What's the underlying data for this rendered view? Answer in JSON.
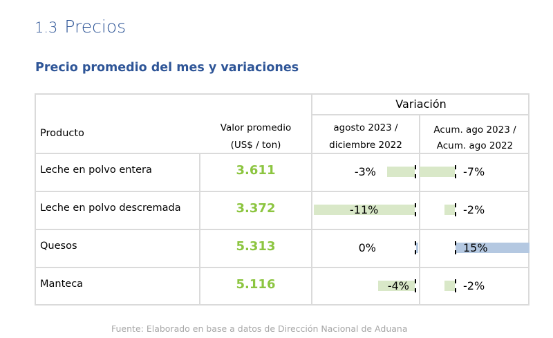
{
  "section": {
    "number": "1.3",
    "title": "Precios"
  },
  "subtitle": "Precio promedio del mes y variaciones",
  "table": {
    "header": {
      "variacion": "Variación",
      "producto": "Producto",
      "valor_line1": "Valor promedio",
      "valor_line2": "(US$ / ton)",
      "mensual_line1": "agosto 2023 /",
      "mensual_line2": "diciembre 2022",
      "acum_line1": "Acum. ago 2023 /",
      "acum_line2": "Acum. ago 2022"
    },
    "rows": [
      {
        "producto": "Leche en polvo entera",
        "valor": "3.611",
        "var_mensual": -3,
        "var_mensual_label": "-3%",
        "var_acum": -7,
        "var_acum_label": "-7%"
      },
      {
        "producto": "Leche en polvo descremada",
        "valor": "3.372",
        "var_mensual": -11,
        "var_mensual_label": "-11%",
        "var_acum": -2,
        "var_acum_label": "-2%"
      },
      {
        "producto": "Quesos",
        "valor": "5.313",
        "var_mensual": 0,
        "var_mensual_label": "0%",
        "var_acum": 15,
        "var_acum_label": "15%"
      },
      {
        "producto": "Manteca",
        "valor": "5.116",
        "var_mensual": -4,
        "var_mensual_label": "-4%",
        "var_acum": -2,
        "var_acum_label": "-2%"
      }
    ]
  },
  "colors": {
    "title": "#2e5597",
    "value": "#8cc540",
    "neg_bar": "#d9e8c8",
    "pos_bar": "#b4c8e1",
    "source": "#a6a6a6"
  },
  "source": "Fuente: Elaborado en base a datos de Dirección Nacional de Aduana"
}
